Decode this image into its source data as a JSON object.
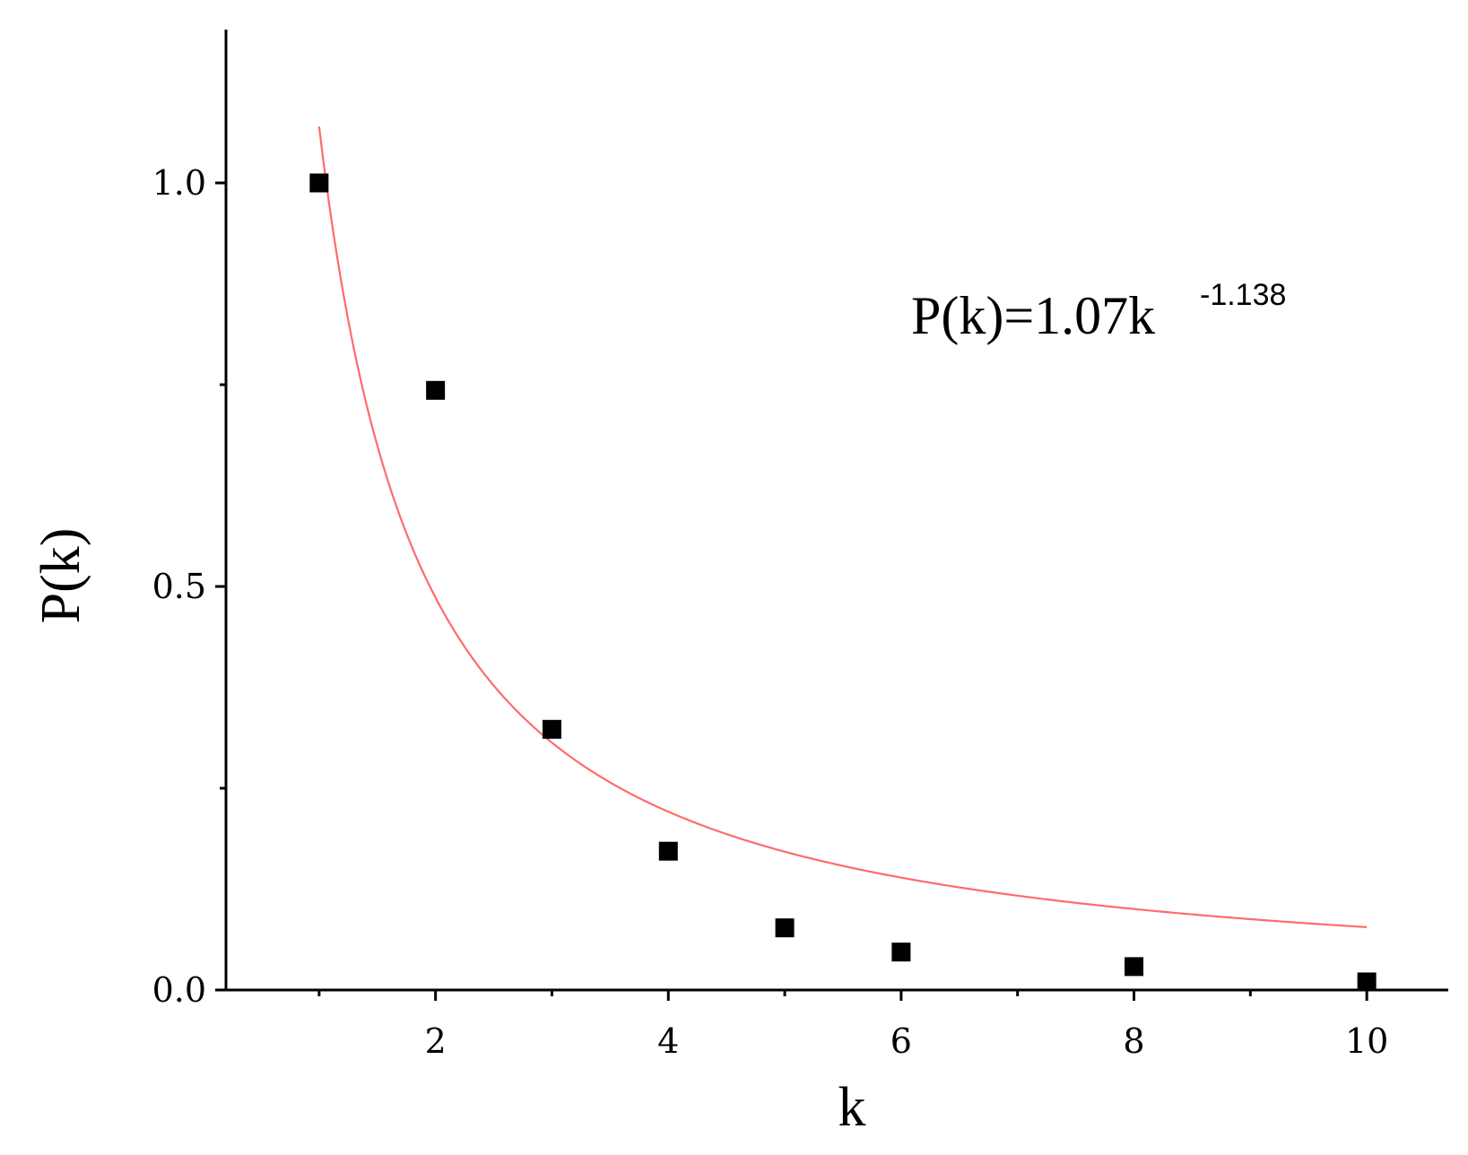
{
  "chart_data": {
    "type": "scatter",
    "title": "",
    "xlabel": "k",
    "ylabel": "P(k)",
    "xlim": [
      0.2,
      10.7
    ],
    "ylim": [
      0.0,
      1.19
    ],
    "x_ticks": [
      2,
      4,
      6,
      8,
      10
    ],
    "x_tick_labels": [
      "2",
      "4",
      "6",
      "8",
      "10"
    ],
    "x_minor_ticks": [
      1,
      3,
      5,
      7,
      9
    ],
    "y_ticks": [
      0.0,
      0.5,
      1.0
    ],
    "y_tick_labels": [
      "0.0",
      "0.5",
      "1.0"
    ],
    "y_minor_ticks": [
      0.25,
      0.75
    ],
    "grid": false,
    "series": [
      {
        "type": "scatter",
        "marker": "square",
        "color": "#000000",
        "x": [
          1,
          2,
          3,
          4,
          5,
          6,
          8,
          10
        ],
        "y": [
          1.0,
          0.743,
          0.323,
          0.172,
          0.077,
          0.047,
          0.029,
          0.01
        ]
      },
      {
        "type": "line",
        "color": "#ff6b6b",
        "formula": "1.07*k^-1.138",
        "coefficient": 1.07,
        "exponent": -1.138,
        "x_range": [
          1,
          10
        ]
      }
    ],
    "annotation": {
      "main": "P(k)=1.07k",
      "superscript": "-1.138"
    }
  }
}
